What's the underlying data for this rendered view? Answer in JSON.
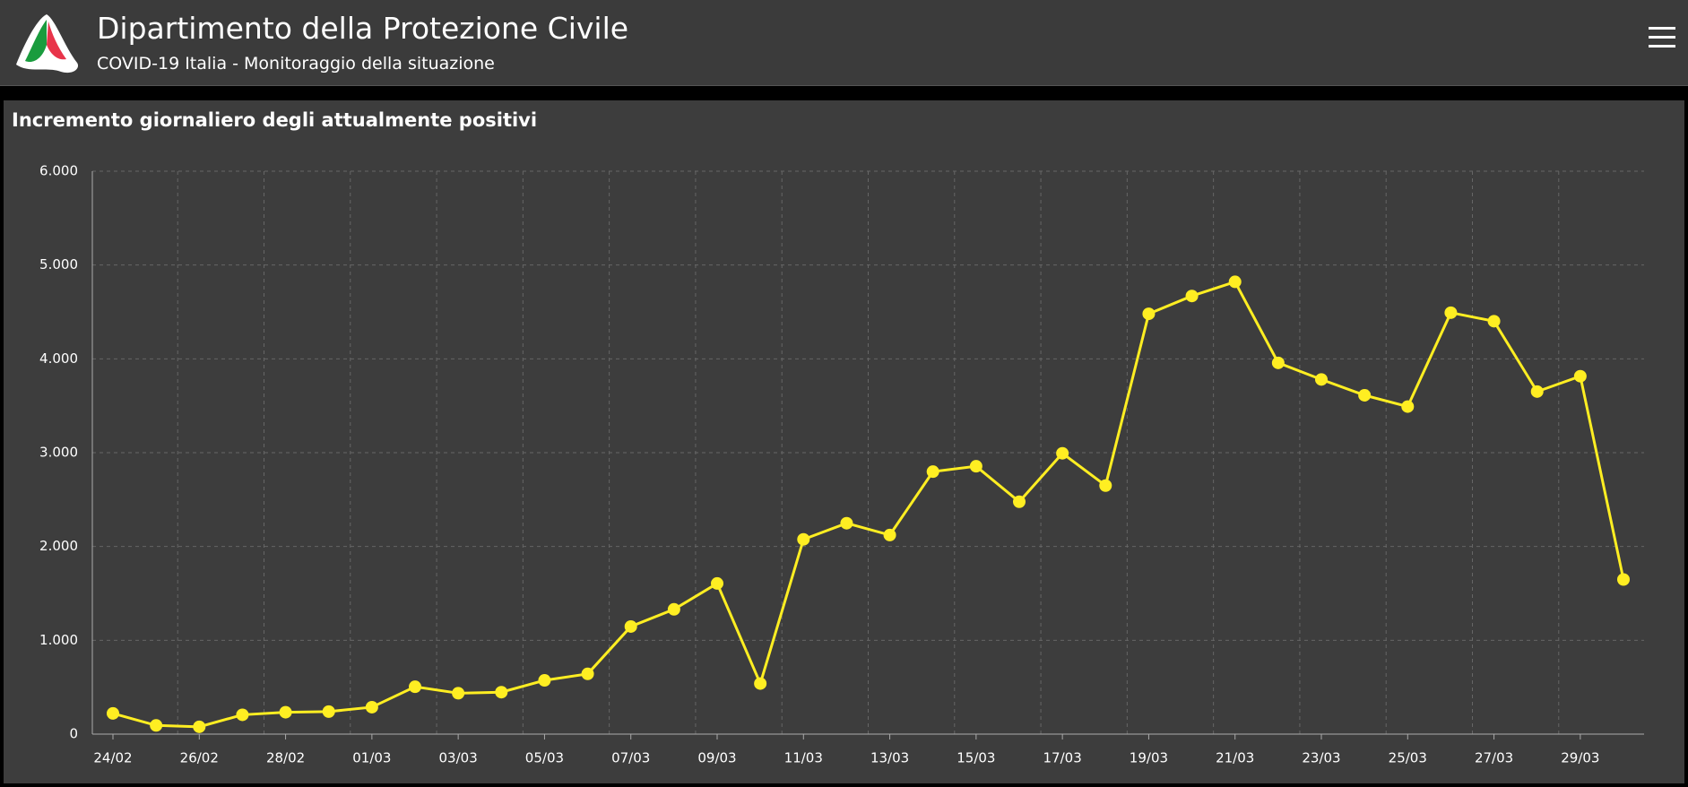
{
  "header": {
    "title": "Dipartimento della Protezione Civile",
    "subtitle": "COVID-19 Italia - Monitoraggio della situazione"
  },
  "chart_data": {
    "type": "line",
    "title": "Incremento giornaliero degli attualmente positivi",
    "categories": [
      "24/02",
      null,
      "26/02",
      null,
      "28/02",
      null,
      "01/03",
      null,
      "03/03",
      null,
      "05/03",
      null,
      "07/03",
      null,
      "09/03",
      null,
      "11/03",
      null,
      "13/03",
      null,
      "15/03",
      null,
      "17/03",
      null,
      "19/03",
      null,
      "21/03",
      null,
      "23/03",
      null,
      "25/03",
      null,
      "27/03",
      null,
      "29/03",
      null
    ],
    "series": [
      {
        "name": "attualmente positivi",
        "color": "#ffee22",
        "values": [
          221,
          93,
          78,
          206,
          233,
          240,
          287,
          505,
          436,
          447,
          573,
          642,
          1147,
          1330,
          1606,
          539,
          2076,
          2248,
          2122,
          2798,
          2855,
          2477,
          2993,
          2649,
          4480,
          4670,
          4821,
          3957,
          3780,
          3612,
          3491,
          4492,
          4401,
          3651,
          3815,
          1648
        ]
      }
    ],
    "ylim": [
      0,
      6000
    ],
    "yticks": [
      0,
      {
        "value": 1000,
        "label": "1.000"
      },
      {
        "value": 2000,
        "label": "2.000"
      },
      {
        "value": 3000,
        "label": "3.000"
      },
      {
        "value": 4000,
        "label": "4.000"
      },
      {
        "value": 5000,
        "label": "5.000"
      },
      {
        "value": 6000,
        "label": "6.000"
      }
    ],
    "grid": true
  }
}
